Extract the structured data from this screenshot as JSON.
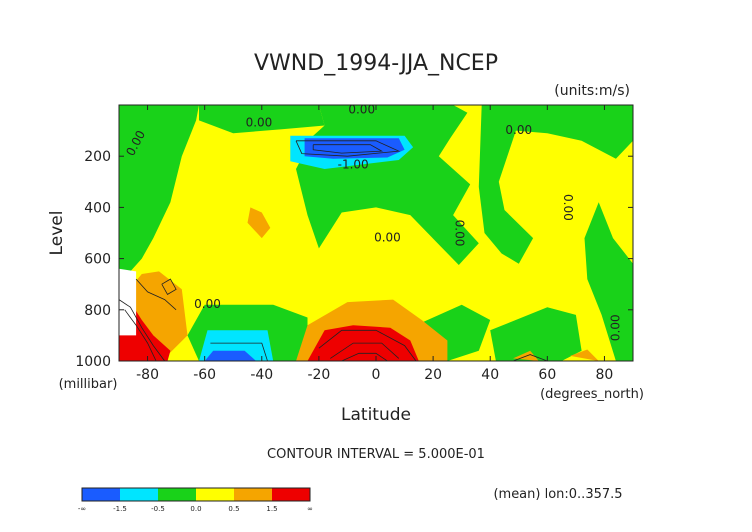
{
  "chart_data": {
    "type": "contour",
    "title": "VWND_1994-JJA_NCEP",
    "units_label": "(units:m/s)",
    "xlabel": "Latitude",
    "x_units_label": "(degrees_north)",
    "ylabel": "Level",
    "y_units_label": "(millibar)",
    "xlim": [
      -90,
      90
    ],
    "ylim": [
      1000,
      0
    ],
    "x_ticks": [
      -80,
      -60,
      -40,
      -20,
      0,
      20,
      40,
      60,
      80
    ],
    "x_tick_labels": [
      "-80",
      "-60",
      "-40",
      "-20",
      "0",
      "20",
      "40",
      "60",
      "80"
    ],
    "y_ticks": [
      200,
      400,
      600,
      800,
      1000
    ],
    "y_tick_labels": [
      "200",
      "400",
      "600",
      "800",
      "1000"
    ],
    "contour_interval_text": "CONTOUR INTERVAL = 5.000E-01",
    "footer_note": "(mean) lon:0..357.5",
    "contour_labels": [
      {
        "text": "0.00",
        "lat": -5,
        "level": 20
      },
      {
        "text": "0.00",
        "lat": -41,
        "level": 70
      },
      {
        "text": "0.00",
        "lat": -84,
        "level": 150,
        "rotate": -62
      },
      {
        "text": "0.00",
        "lat": 50,
        "level": 100
      },
      {
        "text": "-1.00",
        "lat": -8,
        "level": 235
      },
      {
        "text": "0.00",
        "lat": 4,
        "level": 520
      },
      {
        "text": "0.00",
        "lat": 29,
        "level": 500,
        "rotate": 90
      },
      {
        "text": "0.00",
        "lat": 67,
        "level": 400,
        "rotate": 90
      },
      {
        "text": "0.00",
        "lat": -59,
        "level": 780
      },
      {
        "text": "0.00",
        "lat": 84,
        "level": 870,
        "rotate": -90
      }
    ],
    "levels": [
      {
        "range": "< -1.5",
        "color": "#1a5cff"
      },
      {
        "range": "-1.5 to -0.5",
        "color": "#00e5ff"
      },
      {
        "range": "-0.5 to 0.0",
        "color": "#19d219"
      },
      {
        "range": "0.0 to 0.5",
        "color": "#ffff00"
      },
      {
        "range": "0.5 to 1.5",
        "color": "#f5a500"
      },
      {
        "range": "> 1.5",
        "color": "#ee0000"
      }
    ],
    "colorbar_labels": [
      "-∞",
      "-1.5",
      "-0.5",
      "0.0",
      "0.5",
      "1.5",
      "∞"
    ],
    "regions": [
      {
        "name": "background",
        "color": "#ffff00",
        "points": [
          [
            -90,
            0
          ],
          [
            90,
            0
          ],
          [
            90,
            1000
          ],
          [
            -90,
            1000
          ]
        ]
      },
      {
        "name": "green-west",
        "color": "#19d219",
        "points": [
          [
            -90,
            0
          ],
          [
            -62,
            0
          ],
          [
            -63,
            60
          ],
          [
            -68,
            200
          ],
          [
            -72,
            380
          ],
          [
            -78,
            520
          ],
          [
            -82,
            600
          ],
          [
            -86,
            650
          ],
          [
            -90,
            660
          ]
        ]
      },
      {
        "name": "green-topstrip",
        "color": "#19d219",
        "points": [
          [
            -62,
            0
          ],
          [
            -20,
            0
          ],
          [
            -18,
            80
          ],
          [
            -33,
            95
          ],
          [
            -50,
            110
          ],
          [
            -62,
            60
          ]
        ]
      },
      {
        "name": "green-central",
        "color": "#19d219",
        "points": [
          [
            -20,
            0
          ],
          [
            27,
            0
          ],
          [
            32,
            30
          ],
          [
            26,
            130
          ],
          [
            22,
            200
          ],
          [
            33,
            310
          ],
          [
            27,
            430
          ],
          [
            36,
            540
          ],
          [
            29,
            625
          ],
          [
            22,
            545
          ],
          [
            12,
            430
          ],
          [
            0,
            400
          ],
          [
            -12,
            420
          ],
          [
            -20,
            560
          ],
          [
            -24,
            430
          ],
          [
            -28,
            250
          ],
          [
            -22,
            120
          ],
          [
            -18,
            80
          ]
        ]
      },
      {
        "name": "green-east",
        "color": "#19d219",
        "points": [
          [
            37,
            0
          ],
          [
            90,
            0
          ],
          [
            90,
            140
          ],
          [
            84,
            210
          ],
          [
            72,
            140
          ],
          [
            60,
            110
          ],
          [
            49,
            100
          ],
          [
            43,
            300
          ],
          [
            45,
            410
          ],
          [
            55,
            520
          ],
          [
            50,
            620
          ],
          [
            44,
            580
          ],
          [
            38,
            500
          ],
          [
            36,
            320
          ]
        ]
      },
      {
        "name": "green-northeast",
        "color": "#19d219",
        "points": [
          [
            78,
            380
          ],
          [
            83,
            520
          ],
          [
            90,
            620
          ],
          [
            90,
            1000
          ],
          [
            84,
            1000
          ],
          [
            79,
            820
          ],
          [
            74,
            680
          ],
          [
            73,
            520
          ]
        ]
      },
      {
        "name": "green-midsouth",
        "color": "#19d219",
        "points": [
          [
            -60,
            780
          ],
          [
            -36,
            780
          ],
          [
            -24,
            830
          ],
          [
            -24,
            1000
          ],
          [
            -62,
            1000
          ],
          [
            -66,
            900
          ]
        ]
      },
      {
        "name": "green-south",
        "color": "#19d219",
        "points": [
          [
            16,
            850
          ],
          [
            30,
            780
          ],
          [
            40,
            840
          ],
          [
            36,
            960
          ],
          [
            25,
            1000
          ],
          [
            16,
            1000
          ]
        ]
      },
      {
        "name": "green-sweast",
        "color": "#19d219",
        "points": [
          [
            40,
            880
          ],
          [
            60,
            790
          ],
          [
            70,
            820
          ],
          [
            72,
            960
          ],
          [
            65,
            1000
          ],
          [
            42,
            1000
          ]
        ]
      },
      {
        "name": "cyan-upper",
        "color": "#00e5ff",
        "points": [
          [
            -30,
            120
          ],
          [
            10,
            120
          ],
          [
            13,
            165
          ],
          [
            8,
            215
          ],
          [
            -18,
            250
          ],
          [
            -30,
            220
          ]
        ]
      },
      {
        "name": "blue-upper",
        "color": "#1a5cff",
        "points": [
          [
            -25,
            130
          ],
          [
            8,
            130
          ],
          [
            10,
            175
          ],
          [
            4,
            205
          ],
          [
            -15,
            210
          ],
          [
            -25,
            200
          ]
        ]
      },
      {
        "name": "cyan-lower",
        "color": "#00e5ff",
        "points": [
          [
            -59,
            880
          ],
          [
            -38,
            880
          ],
          [
            -36,
            1000
          ],
          [
            -62,
            1000
          ]
        ]
      },
      {
        "name": "blue-lower",
        "color": "#1a5cff",
        "points": [
          [
            -57,
            960
          ],
          [
            -46,
            960
          ],
          [
            -42,
            1000
          ],
          [
            -60,
            1000
          ]
        ]
      },
      {
        "name": "orange-west",
        "color": "#f5a500",
        "points": [
          [
            -90,
            720
          ],
          [
            -88,
            740
          ],
          [
            -82,
            660
          ],
          [
            -76,
            650
          ],
          [
            -68,
            720
          ],
          [
            -66,
            900
          ],
          [
            -75,
            1000
          ],
          [
            -90,
            1000
          ]
        ]
      },
      {
        "name": "red-west",
        "color": "#ee0000",
        "points": [
          [
            -90,
            740
          ],
          [
            -86,
            770
          ],
          [
            -82,
            840
          ],
          [
            -78,
            900
          ],
          [
            -72,
            960
          ],
          [
            -73,
            1000
          ],
          [
            -90,
            1000
          ]
        ]
      },
      {
        "name": "white-patch",
        "color": "#ffffff",
        "points": [
          [
            -90,
            640
          ],
          [
            -84,
            650
          ],
          [
            -84,
            900
          ],
          [
            -90,
            900
          ]
        ]
      },
      {
        "name": "orange-south",
        "color": "#f5a500",
        "points": [
          [
            -28,
            1000
          ],
          [
            -24,
            860
          ],
          [
            -10,
            770
          ],
          [
            6,
            760
          ],
          [
            16,
            840
          ],
          [
            25,
            920
          ],
          [
            25,
            1000
          ]
        ]
      },
      {
        "name": "red-south",
        "color": "#ee0000",
        "points": [
          [
            -24,
            1000
          ],
          [
            -18,
            880
          ],
          [
            -8,
            860
          ],
          [
            5,
            870
          ],
          [
            12,
            920
          ],
          [
            15,
            1000
          ]
        ]
      },
      {
        "name": "orange-east",
        "color": "#f5a500",
        "points": [
          [
            48,
            990
          ],
          [
            54,
            960
          ],
          [
            57,
            1000
          ]
        ]
      },
      {
        "name": "orange-mid",
        "color": "#f5a500",
        "points": [
          [
            -44,
            400
          ],
          [
            -40,
            420
          ],
          [
            -37,
            480
          ],
          [
            -40,
            520
          ],
          [
            -45,
            460
          ]
        ]
      },
      {
        "name": "orange-far-east",
        "color": "#f5a500",
        "points": [
          [
            68,
            980
          ],
          [
            74,
            955
          ],
          [
            78,
            1000
          ]
        ]
      }
    ],
    "contour_lines": [
      {
        "points": [
          [
            -84,
            680
          ],
          [
            -80,
            730
          ],
          [
            -74,
            760
          ],
          [
            -70,
            800
          ]
        ]
      },
      {
        "points": [
          [
            -75,
            700
          ],
          [
            -72,
            680
          ],
          [
            -70,
            720
          ],
          [
            -73,
            740
          ],
          [
            -75,
            700
          ]
        ]
      },
      {
        "points": [
          [
            -90,
            760
          ],
          [
            -86,
            790
          ],
          [
            -82,
            870
          ],
          [
            -78,
            940
          ],
          [
            -74,
            1000
          ]
        ]
      },
      {
        "points": [
          [
            -88,
            800
          ],
          [
            -84,
            860
          ],
          [
            -80,
            930
          ],
          [
            -77,
            1000
          ]
        ]
      },
      {
        "points": [
          [
            -20,
            950
          ],
          [
            -12,
            880
          ],
          [
            0,
            880
          ],
          [
            10,
            940
          ],
          [
            14,
            1000
          ]
        ]
      },
      {
        "points": [
          [
            -16,
            990
          ],
          [
            -8,
            930
          ],
          [
            2,
            930
          ],
          [
            8,
            990
          ]
        ]
      },
      {
        "points": [
          [
            -12,
            1000
          ],
          [
            -6,
            970
          ],
          [
            0,
            970
          ],
          [
            4,
            1000
          ]
        ]
      },
      {
        "points": [
          [
            -28,
            140
          ],
          [
            0,
            140
          ],
          [
            8,
            180
          ],
          [
            -10,
            200
          ],
          [
            -26,
            190
          ],
          [
            -28,
            140
          ]
        ]
      },
      {
        "points": [
          [
            -22,
            155
          ],
          [
            -2,
            155
          ],
          [
            2,
            180
          ],
          [
            -12,
            188
          ],
          [
            -22,
            175
          ],
          [
            -22,
            155
          ]
        ]
      },
      {
        "points": [
          [
            -58,
            930
          ],
          [
            -40,
            930
          ],
          [
            -38,
            1000
          ]
        ]
      },
      {
        "points": [
          [
            48,
            1000
          ],
          [
            54,
            975
          ],
          [
            60,
            1000
          ]
        ]
      }
    ]
  }
}
